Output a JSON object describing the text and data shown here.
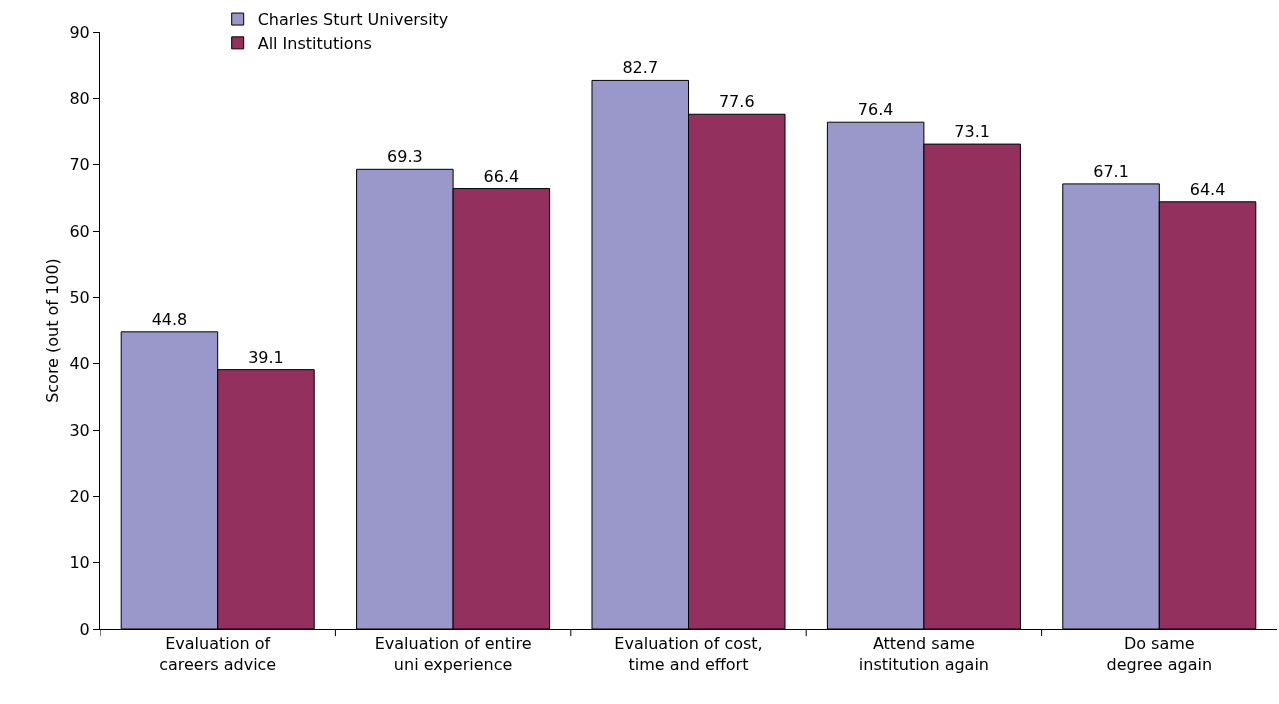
{
  "chart_data": {
    "type": "bar",
    "ylabel": "Score (out of 100)",
    "categories": [
      "Evaluation of careers advice",
      "Evaluation of entire uni experience",
      "Evaluation of cost, time and effort",
      "Attend same institution again",
      "Do same degree again"
    ],
    "series": [
      {
        "name": "Charles Sturt University",
        "color": "#9a97cb",
        "values": [
          44.8,
          69.3,
          82.7,
          76.4,
          67.1
        ]
      },
      {
        "name": "All Institutions",
        "color": "#94305d",
        "values": [
          39.1,
          66.4,
          77.6,
          73.1,
          64.4
        ]
      }
    ],
    "ylim": [
      0,
      90
    ],
    "yticks": [
      0,
      10,
      20,
      30,
      40,
      50,
      60,
      70,
      80,
      90
    ],
    "grid": false,
    "legend": "top left",
    "data_labels": true
  }
}
